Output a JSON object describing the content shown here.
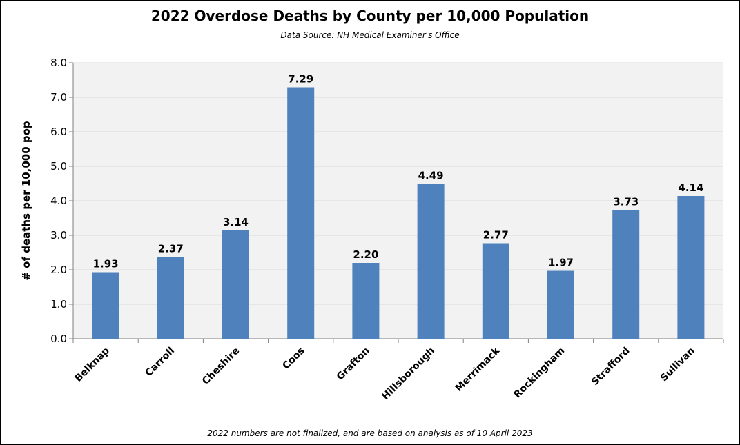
{
  "chart_data": {
    "type": "bar",
    "title": "2022 Overdose Deaths by County per 10,000 Population",
    "subtitle": "Data Source: NH Medical Examiner's Office",
    "ylabel": "# of deaths per 10,000 pop",
    "xlabel": "",
    "footnote": "2022 numbers are not finalized, and are based on analysis as of 10 April 2023",
    "categories": [
      "Belknap",
      "Carroll",
      "Cheshire",
      "Coos",
      "Grafton",
      "Hillsborough",
      "Merrimack",
      "Rockingham",
      "Strafford",
      "Sullivan"
    ],
    "values": [
      1.93,
      2.37,
      3.14,
      7.29,
      2.2,
      4.49,
      2.77,
      1.97,
      3.73,
      4.14
    ],
    "data_labels": [
      "1.93",
      "2.37",
      "3.14",
      "7.29",
      "2.20",
      "4.49",
      "2.77",
      "1.97",
      "3.73",
      "4.14"
    ],
    "y_ticks": [
      "0.0",
      "1.0",
      "2.0",
      "3.0",
      "4.0",
      "5.0",
      "6.0",
      "7.0",
      "8.0"
    ],
    "ylim": [
      0,
      8
    ],
    "grid": true,
    "legend": "none",
    "colors": {
      "bar": "#4f81bd",
      "plot_background": "#f2f2f2",
      "gridline": "#d9d9d9"
    }
  }
}
